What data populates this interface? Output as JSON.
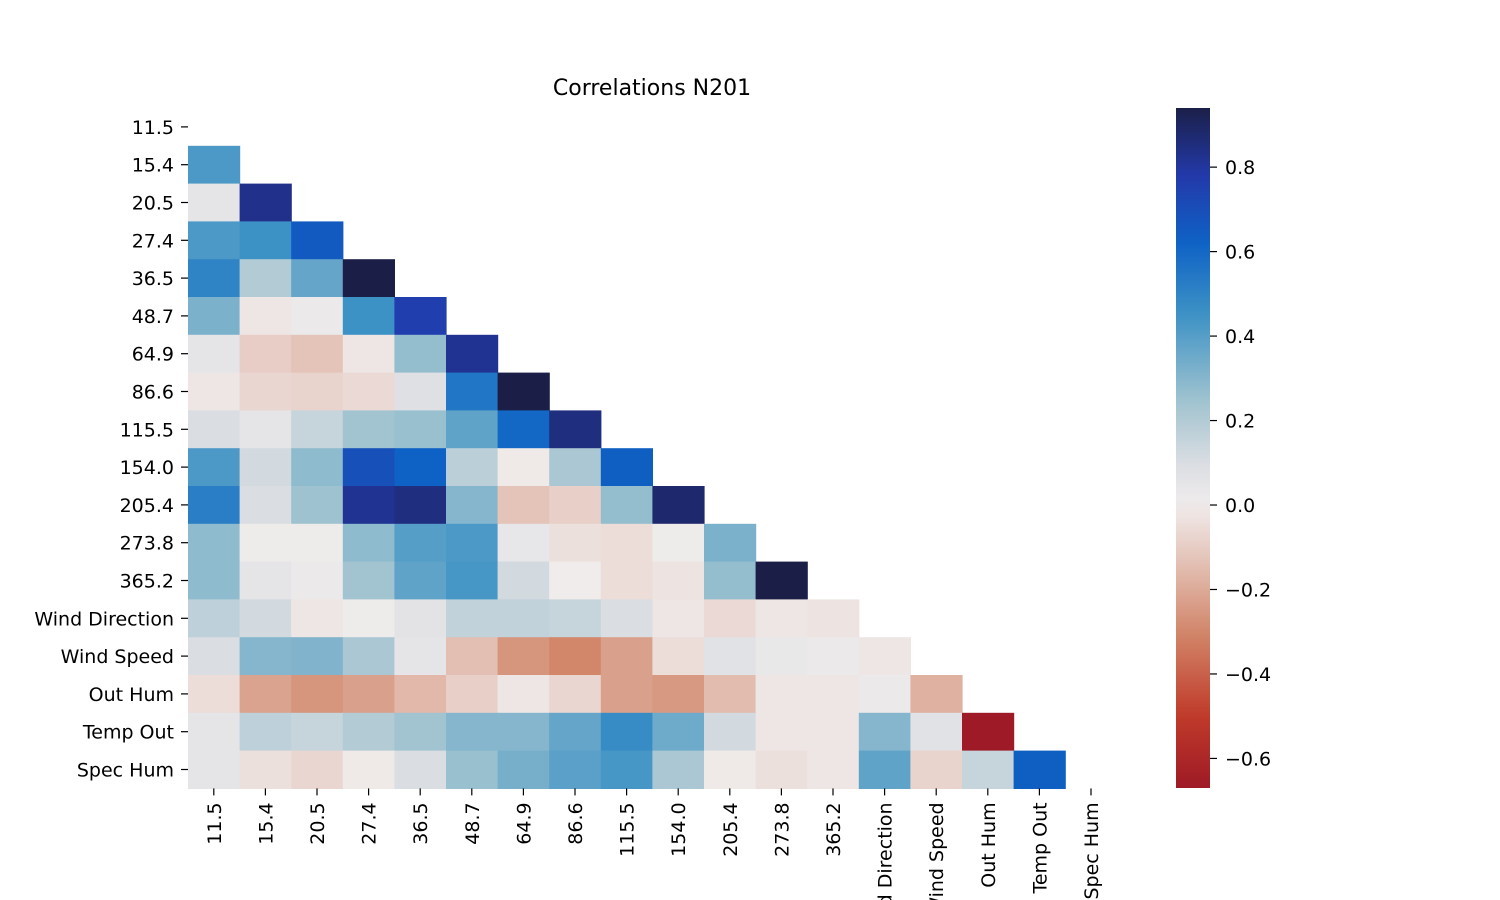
{
  "chart_data": {
    "type": "heatmap",
    "title": "Correlations N201",
    "xlabel": "",
    "ylabel": "",
    "mask": "upper-triangle-and-diagonal",
    "row_labels": [
      "11.5",
      "15.4",
      "20.5",
      "27.4",
      "36.5",
      "48.7",
      "64.9",
      "86.6",
      "115.5",
      "154.0",
      "205.4",
      "273.8",
      "365.2",
      "Wind Direction",
      "Wind Speed",
      "Out Hum",
      "Temp Out",
      "Spec Hum"
    ],
    "col_labels": [
      "11.5",
      "15.4",
      "20.5",
      "27.4",
      "36.5",
      "48.7",
      "64.9",
      "86.6",
      "115.5",
      "154.0",
      "205.4",
      "273.8",
      "365.2",
      "Wind Direction",
      "Wind Speed",
      "Out Hum",
      "Temp Out",
      "Spec Hum"
    ],
    "colormap": "red-white-blue-navy diverging",
    "vmin": -0.67,
    "vmax": 0.94,
    "colorbar_ticks": [
      "−0.6",
      "−0.4",
      "−0.2",
      "0.0",
      "0.2",
      "0.4",
      "0.6",
      "0.8"
    ],
    "colorbar_tick_values": [
      -0.6,
      -0.4,
      -0.2,
      0.0,
      0.2,
      0.4,
      0.6,
      0.8
    ],
    "values": [
      [],
      [
        0.42
      ],
      [
        0.05,
        0.83
      ],
      [
        0.42,
        0.45,
        0.65
      ],
      [
        0.5,
        0.2,
        0.37,
        0.94
      ],
      [
        0.32,
        -0.02,
        0.02,
        0.45,
        0.76
      ],
      [
        0.05,
        -0.1,
        -0.13,
        -0.02,
        0.27,
        0.82
      ],
      [
        -0.02,
        -0.07,
        -0.08,
        -0.06,
        0.08,
        0.55,
        0.94
      ],
      [
        0.1,
        0.05,
        0.15,
        0.24,
        0.26,
        0.38,
        0.6,
        0.85
      ],
      [
        0.42,
        0.12,
        0.28,
        0.69,
        0.62,
        0.18,
        -0.01,
        0.22,
        0.63
      ],
      [
        0.52,
        0.1,
        0.25,
        0.82,
        0.85,
        0.3,
        -0.13,
        -0.09,
        0.27,
        0.88
      ],
      [
        0.28,
        0.01,
        0.01,
        0.28,
        0.4,
        0.42,
        0.04,
        -0.04,
        -0.05,
        0.01,
        0.32
      ],
      [
        0.28,
        0.05,
        0.02,
        0.24,
        0.38,
        0.43,
        0.12,
        0.0,
        -0.05,
        -0.03,
        0.27,
        0.94
      ],
      [
        0.17,
        0.12,
        -0.02,
        0.01,
        0.06,
        0.16,
        0.16,
        0.15,
        0.1,
        -0.02,
        -0.06,
        -0.02,
        -0.03
      ],
      [
        0.1,
        0.3,
        0.31,
        0.22,
        0.05,
        -0.14,
        -0.26,
        -0.3,
        -0.23,
        -0.05,
        0.07,
        0.03,
        0.02,
        -0.02
      ],
      [
        -0.05,
        -0.22,
        -0.26,
        -0.23,
        -0.16,
        -0.09,
        -0.02,
        -0.07,
        -0.23,
        -0.25,
        -0.15,
        -0.02,
        -0.02,
        0.02,
        -0.18
      ],
      [
        0.05,
        0.17,
        0.15,
        0.2,
        0.24,
        0.3,
        0.3,
        0.37,
        0.47,
        0.35,
        0.12,
        -0.02,
        -0.02,
        0.3,
        0.07,
        -0.67
      ],
      [
        0.05,
        -0.04,
        -0.07,
        -0.01,
        0.1,
        0.26,
        0.33,
        0.39,
        0.43,
        0.22,
        -0.01,
        -0.04,
        -0.02,
        0.38,
        -0.08,
        0.15,
        0.63
      ]
    ]
  },
  "colors": {
    "scale": [
      {
        "v": -0.67,
        "c": "#9e1a26"
      },
      {
        "v": -0.5,
        "c": "#c03a2a"
      },
      {
        "v": -0.3,
        "c": "#d2876b"
      },
      {
        "v": -0.1,
        "c": "#e7cdc5"
      },
      {
        "v": 0.0,
        "c": "#f0ecec"
      },
      {
        "v": 0.1,
        "c": "#dadde2"
      },
      {
        "v": 0.25,
        "c": "#9ec2cf"
      },
      {
        "v": 0.45,
        "c": "#3d92c5"
      },
      {
        "v": 0.62,
        "c": "#0e62c5"
      },
      {
        "v": 0.78,
        "c": "#2339aa"
      },
      {
        "v": 0.94,
        "c": "#1b1f48"
      }
    ]
  }
}
